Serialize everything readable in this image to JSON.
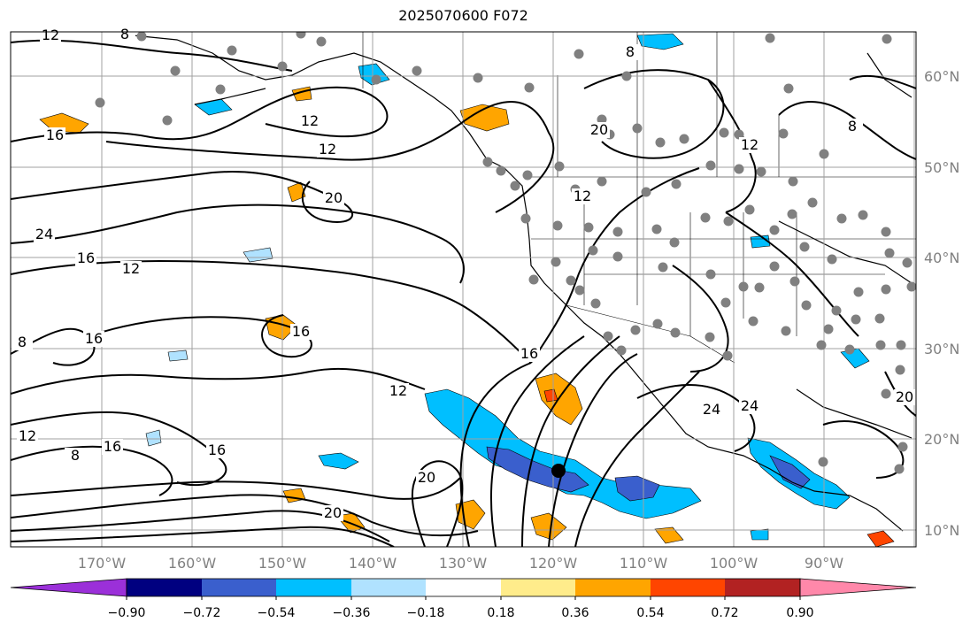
{
  "title": "2025070600 F072",
  "longitude_labels": [
    "170°W",
    "160°W",
    "150°W",
    "140°W",
    "130°W",
    "120°W",
    "110°W",
    "100°W",
    "90°W"
  ],
  "latitude_labels": [
    "60°N",
    "50°N",
    "40°N",
    "30°N",
    "20°N",
    "10°N"
  ],
  "colorbar": {
    "ticks": [
      "−0.90",
      "−0.72",
      "−0.54",
      "−0.36",
      "−0.18",
      "0.18",
      "0.36",
      "0.54",
      "0.72",
      "0.90"
    ],
    "colors": [
      "#9b30d9",
      "#000080",
      "#3a5fcd",
      "#00bfff",
      "#b0e2ff",
      "#ffffff",
      "#ffec8b",
      "#ffa500",
      "#ff4500",
      "#b22222",
      "#ff88aa"
    ]
  },
  "contour_labels": [
    "12",
    "8",
    "16",
    "12",
    "8",
    "12",
    "20",
    "24",
    "20",
    "16",
    "12",
    "16",
    "8",
    "16",
    "12",
    "16",
    "8",
    "16",
    "12",
    "20",
    "20",
    "12",
    "16",
    "12",
    "8",
    "24",
    "24",
    "20"
  ],
  "colors": {
    "contour": "#000000",
    "grid": "#a0a0a0",
    "station": "#808080",
    "storm_marker": "#000000"
  }
}
